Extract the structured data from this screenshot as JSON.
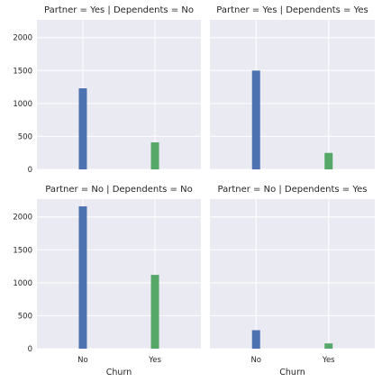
{
  "chart_data": {
    "type": "bar",
    "panels": [
      {
        "title": "Partner = Yes | Dependents = No",
        "categories": [
          "No",
          "Yes"
        ],
        "values": [
          1230,
          410
        ],
        "colors": [
          "#4c72b0",
          "#55a868"
        ]
      },
      {
        "title": "Partner = Yes | Dependents = Yes",
        "categories": [
          "No",
          "Yes"
        ],
        "values": [
          1500,
          250
        ],
        "colors": [
          "#4c72b0",
          "#55a868"
        ]
      },
      {
        "title": "Partner = No | Dependents = No",
        "categories": [
          "No",
          "Yes"
        ],
        "values": [
          2160,
          1120
        ],
        "colors": [
          "#4c72b0",
          "#55a868"
        ]
      },
      {
        "title": "Partner = No | Dependents = Yes",
        "categories": [
          "No",
          "Yes"
        ],
        "values": [
          280,
          80
        ],
        "colors": [
          "#4c72b0",
          "#55a868"
        ]
      }
    ],
    "xlabel": "Churn",
    "ylabel": "",
    "yticks": [
      0,
      500,
      1000,
      1500,
      2000
    ],
    "ylim": [
      0,
      2270
    ],
    "grid": true,
    "style": {
      "panel_background": "#eaeaf2",
      "grid_color": "#ffffff"
    }
  }
}
